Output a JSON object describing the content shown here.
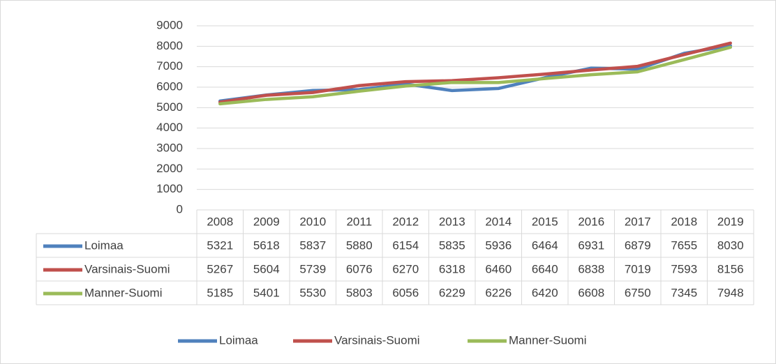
{
  "chart_data": {
    "type": "line",
    "categories": [
      "2008",
      "2009",
      "2010",
      "2011",
      "2012",
      "2013",
      "2014",
      "2015",
      "2016",
      "2017",
      "2018",
      "2019"
    ],
    "series": [
      {
        "name": "Loimaa",
        "color": "#4f81bd",
        "values": [
          5321,
          5618,
          5837,
          5880,
          6154,
          5835,
          5936,
          6464,
          6931,
          6879,
          7655,
          8030
        ]
      },
      {
        "name": "Varsinais-Suomi",
        "color": "#c0504d",
        "values": [
          5267,
          5604,
          5739,
          6076,
          6270,
          6318,
          6460,
          6640,
          6838,
          7019,
          7593,
          8156
        ]
      },
      {
        "name": "Manner-Suomi",
        "color": "#9bbb59",
        "values": [
          5185,
          5401,
          5530,
          5803,
          6056,
          6229,
          6226,
          6420,
          6608,
          6750,
          7345,
          7948
        ]
      }
    ],
    "ylim": [
      0,
      9000
    ],
    "yticks": [
      0,
      1000,
      2000,
      3000,
      4000,
      5000,
      6000,
      7000,
      8000,
      9000
    ],
    "grid": true,
    "legend": "bottom"
  }
}
